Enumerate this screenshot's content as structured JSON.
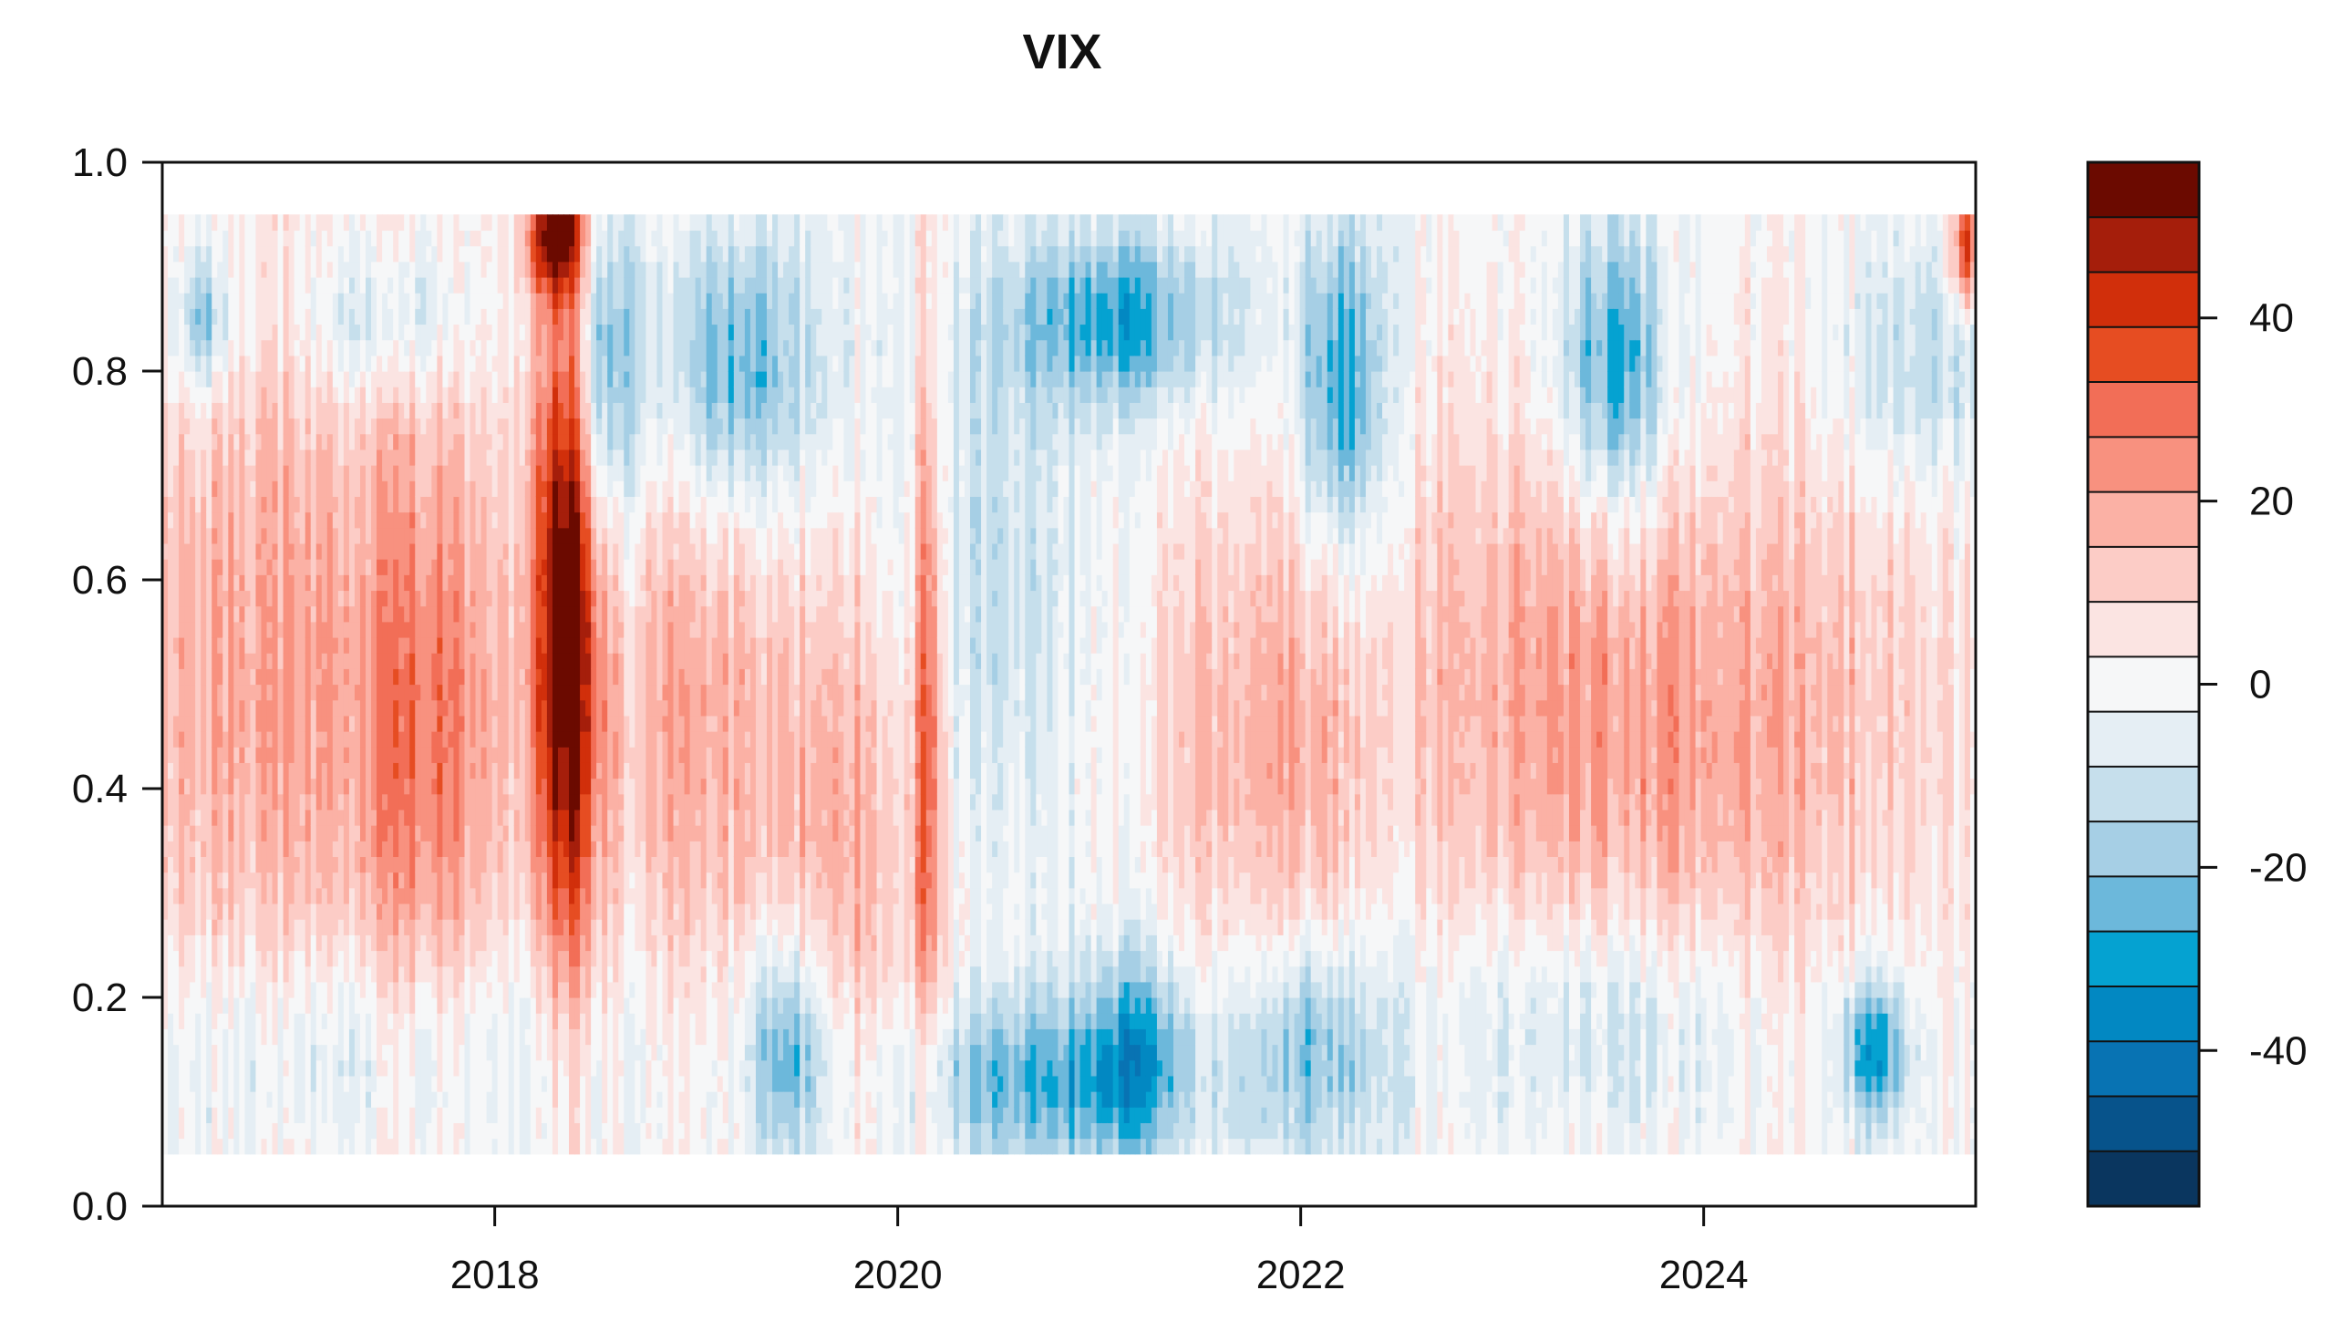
{
  "chart_data": {
    "type": "heatmap",
    "title": "VIX",
    "xlabel": "",
    "ylabel": "",
    "xlim": [
      2016.35,
      2025.35
    ],
    "ylim": [
      0.0,
      1.0
    ],
    "x_ticks": [
      {
        "value": 2018,
        "label": "2018"
      },
      {
        "value": 2020,
        "label": "2020"
      },
      {
        "value": 2022,
        "label": "2022"
      },
      {
        "value": 2024,
        "label": "2024"
      }
    ],
    "y_ticks": [
      {
        "value": 0.0,
        "label": "0.0"
      },
      {
        "value": 0.2,
        "label": "0.2"
      },
      {
        "value": 0.4,
        "label": "0.4"
      },
      {
        "value": 0.6,
        "label": "0.6"
      },
      {
        "value": 0.8,
        "label": "0.8"
      },
      {
        "value": 1.0,
        "label": "1.0"
      }
    ],
    "data_y_range": [
      0.05,
      0.95
    ],
    "data_x_range": [
      2016.35,
      2025.35
    ],
    "colorbar": {
      "range": [
        -57,
        57
      ],
      "ticks": [
        {
          "value": 40,
          "label": "40"
        },
        {
          "value": 20,
          "label": "20"
        },
        {
          "value": 0,
          "label": "0"
        },
        {
          "value": -20,
          "label": "-20"
        },
        {
          "value": -40,
          "label": "-40"
        }
      ],
      "colors_top_to_bottom": [
        "#6b0a00",
        "#a51e0b",
        "#d12f0b",
        "#e64d22",
        "#f26e57",
        "#f8917f",
        "#fbb1a5",
        "#fcccc6",
        "#fbe4e2",
        "#f6f7f8",
        "#e5eef4",
        "#c6dfec",
        "#a6cfe5",
        "#6cb8db",
        "#05a2d1",
        "#0288c2",
        "#0873b3",
        "#07538b",
        "#0a365f"
      ]
    },
    "features": [
      {
        "x": 2016.85,
        "y": 0.5,
        "value": 20,
        "sx": 0.7,
        "sy": 0.26
      },
      {
        "x": 2017.7,
        "y": 0.45,
        "value": 20,
        "sx": 0.25,
        "sy": 0.22
      },
      {
        "x": 2018.35,
        "y": 0.55,
        "value": 58,
        "sx": 0.12,
        "sy": 0.24
      },
      {
        "x": 2018.3,
        "y": 0.93,
        "value": 50,
        "sx": 0.1,
        "sy": 0.04
      },
      {
        "x": 2018.95,
        "y": 0.48,
        "value": 18,
        "sx": 0.3,
        "sy": 0.2
      },
      {
        "x": 2019.75,
        "y": 0.38,
        "value": 20,
        "sx": 0.3,
        "sy": 0.22
      },
      {
        "x": 2020.15,
        "y": 0.5,
        "value": 32,
        "sx": 0.05,
        "sy": 0.26
      },
      {
        "x": 2021.8,
        "y": 0.45,
        "value": 18,
        "sx": 0.4,
        "sy": 0.18
      },
      {
        "x": 2023.05,
        "y": 0.5,
        "value": 16,
        "sx": 0.5,
        "sy": 0.2
      },
      {
        "x": 2024.0,
        "y": 0.45,
        "value": 18,
        "sx": 0.5,
        "sy": 0.2
      },
      {
        "x": 2024.9,
        "y": 0.5,
        "value": 10,
        "sx": 0.4,
        "sy": 0.2
      },
      {
        "x": 2025.3,
        "y": 0.92,
        "value": 40,
        "sx": 0.05,
        "sy": 0.04
      },
      {
        "x": 2016.55,
        "y": 0.85,
        "value": -25,
        "sx": 0.1,
        "sy": 0.05
      },
      {
        "x": 2017.45,
        "y": 0.85,
        "value": -15,
        "sx": 0.3,
        "sy": 0.05
      },
      {
        "x": 2018.55,
        "y": 0.8,
        "value": -28,
        "sx": 0.1,
        "sy": 0.12
      },
      {
        "x": 2019.2,
        "y": 0.8,
        "value": -28,
        "sx": 0.3,
        "sy": 0.1
      },
      {
        "x": 2021.1,
        "y": 0.85,
        "value": -28,
        "sx": 0.4,
        "sy": 0.06
      },
      {
        "x": 2022.2,
        "y": 0.78,
        "value": -32,
        "sx": 0.15,
        "sy": 0.12
      },
      {
        "x": 2023.55,
        "y": 0.8,
        "value": -32,
        "sx": 0.2,
        "sy": 0.1
      },
      {
        "x": 2025.1,
        "y": 0.8,
        "value": -15,
        "sx": 0.3,
        "sy": 0.08
      },
      {
        "x": 2019.45,
        "y": 0.15,
        "value": -30,
        "sx": 0.15,
        "sy": 0.08
      },
      {
        "x": 2020.7,
        "y": 0.12,
        "value": -25,
        "sx": 0.5,
        "sy": 0.06
      },
      {
        "x": 2021.2,
        "y": 0.15,
        "value": -22,
        "sx": 0.2,
        "sy": 0.08
      },
      {
        "x": 2022.05,
        "y": 0.15,
        "value": -25,
        "sx": 0.25,
        "sy": 0.08
      },
      {
        "x": 2023.5,
        "y": 0.18,
        "value": -15,
        "sx": 0.6,
        "sy": 0.08
      },
      {
        "x": 2024.85,
        "y": 0.15,
        "value": -32,
        "sx": 0.12,
        "sy": 0.05
      },
      {
        "x": 2017.3,
        "y": 0.15,
        "value": -12,
        "sx": 1.0,
        "sy": 0.08
      },
      {
        "x": 2020.4,
        "y": 0.6,
        "value": -12,
        "sx": 0.4,
        "sy": 0.2
      }
    ]
  }
}
